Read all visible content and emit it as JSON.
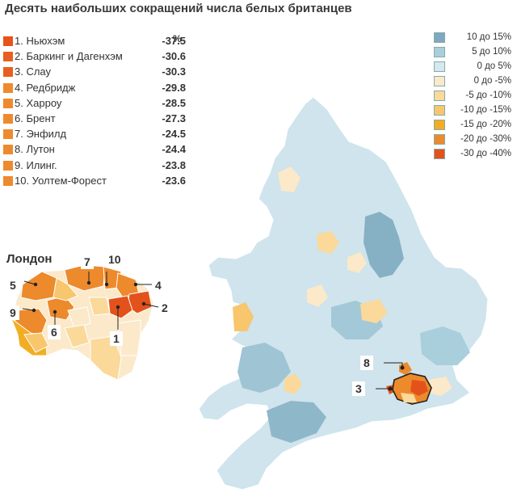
{
  "title": "Десять наибольших сокращений числа белых британцев",
  "ranking": {
    "unit": "%",
    "items": [
      {
        "label": "1. Ньюхэм",
        "value": "-37.5",
        "color": "#e8531c"
      },
      {
        "label": "2. Баркинг и Дагенхэм",
        "value": "-30.6",
        "color": "#e8601f"
      },
      {
        "label": "3. Слау",
        "value": "-30.3",
        "color": "#e8601f"
      },
      {
        "label": "4. Редбридж",
        "value": "-29.8",
        "color": "#ee8a2e"
      },
      {
        "label": "5. Харроу",
        "value": "-28.5",
        "color": "#ee8a2e"
      },
      {
        "label": "6. Брент",
        "value": "-27.3",
        "color": "#ee8a2e"
      },
      {
        "label": "7. Энфилд",
        "value": "-24.5",
        "color": "#ee8a2e"
      },
      {
        "label": "8. Лутон",
        "value": "-24.4",
        "color": "#ee8a2e"
      },
      {
        "label": "9. Илинг.",
        "value": "-23.8",
        "color": "#ee8a2e"
      },
      {
        "label": "10. Уолтем-Форест",
        "value": "-23.6",
        "color": "#ee8a2e"
      }
    ]
  },
  "legend": [
    {
      "label": "10 до 15%",
      "color": "#7fa9bf"
    },
    {
      "label": "5 до 10%",
      "color": "#a9cfdc"
    },
    {
      "label": "0 до 5%",
      "color": "#d3e9ef"
    },
    {
      "label": "0 до -5%",
      "color": "#fbe9c9"
    },
    {
      "label": "-5 до -10%",
      "color": "#fad99a"
    },
    {
      "label": "-10 до -15%",
      "color": "#f8c66c"
    },
    {
      "label": "-15 до -20%",
      "color": "#f2ad22"
    },
    {
      "label": "-20 до -30%",
      "color": "#ec8a2c"
    },
    {
      "label": "-30 до -40%",
      "color": "#e4521b"
    }
  ],
  "inset": {
    "title": "Лондон",
    "callouts": [
      "1",
      "2",
      "4",
      "5",
      "6",
      "7",
      "9",
      "10"
    ]
  },
  "map_callouts": [
    "8",
    "3"
  ]
}
